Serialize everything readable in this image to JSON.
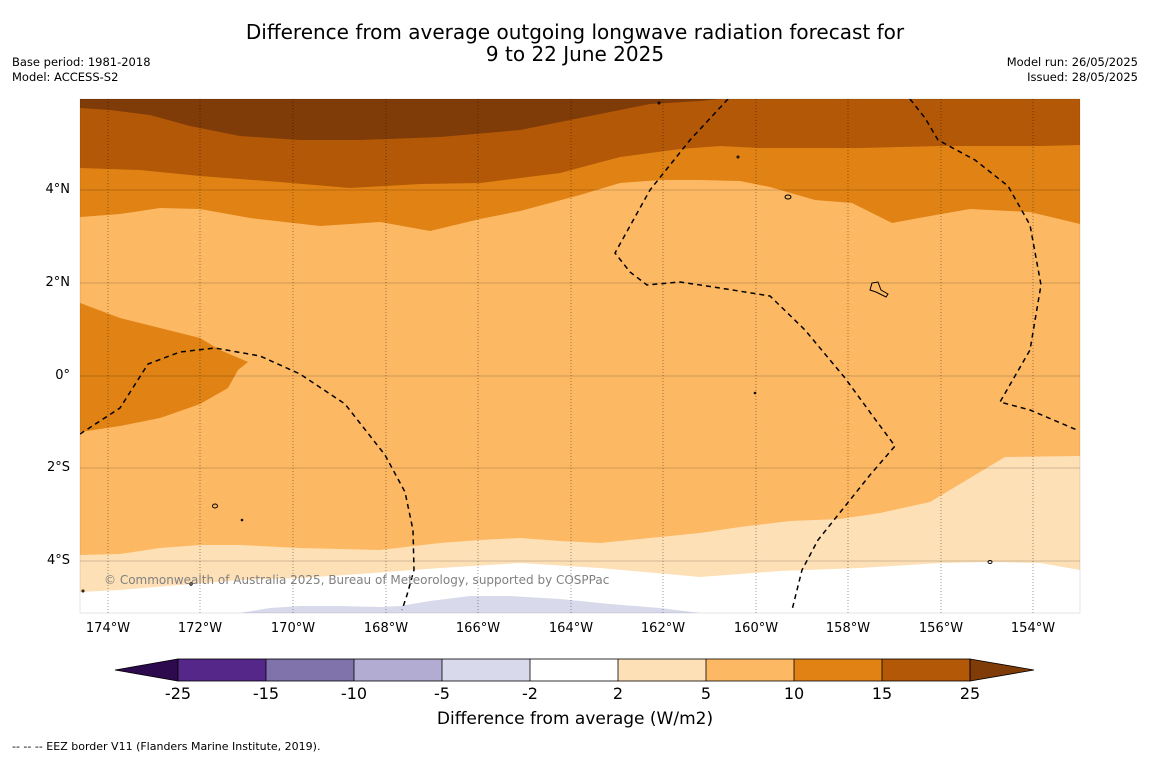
{
  "header": {
    "title_line1": "Difference from average outgoing longwave radiation forecast for",
    "title_line2": "9 to 22 June 2025",
    "base_period": "Base period: 1981-2018",
    "model": "Model: ACCESS-S2",
    "model_run": "Model run: 26/05/2025",
    "issued": "Issued: 28/05/2025"
  },
  "map": {
    "lat_labels": [
      "4°N",
      "2°N",
      "0°",
      "2°S",
      "4°S"
    ],
    "lon_labels": [
      "174°W",
      "172°W",
      "170°W",
      "168°W",
      "166°W",
      "164°W",
      "162°W",
      "160°W",
      "158°W",
      "156°W",
      "154°W"
    ],
    "copyright": "© Commonwealth of Australia 2025, Bureau of Meteorology, supported by COSPPac"
  },
  "colorbar": {
    "ticks": [
      "-25",
      "-15",
      "-10",
      "-5",
      "-2",
      "2",
      "5",
      "10",
      "15",
      "25"
    ],
    "colors": [
      "#2d0a4e",
      "#542788",
      "#8073ac",
      "#b2abd2",
      "#d8daeb",
      "#ffffff",
      "#fee0b6",
      "#fdb863",
      "#e08214",
      "#b35806",
      "#7f3b08"
    ],
    "label": "Difference from average (W/m2)"
  },
  "footer": {
    "legend": "--  --  -- EEZ border V11 (Flanders Marine Institute, 2019)."
  }
}
